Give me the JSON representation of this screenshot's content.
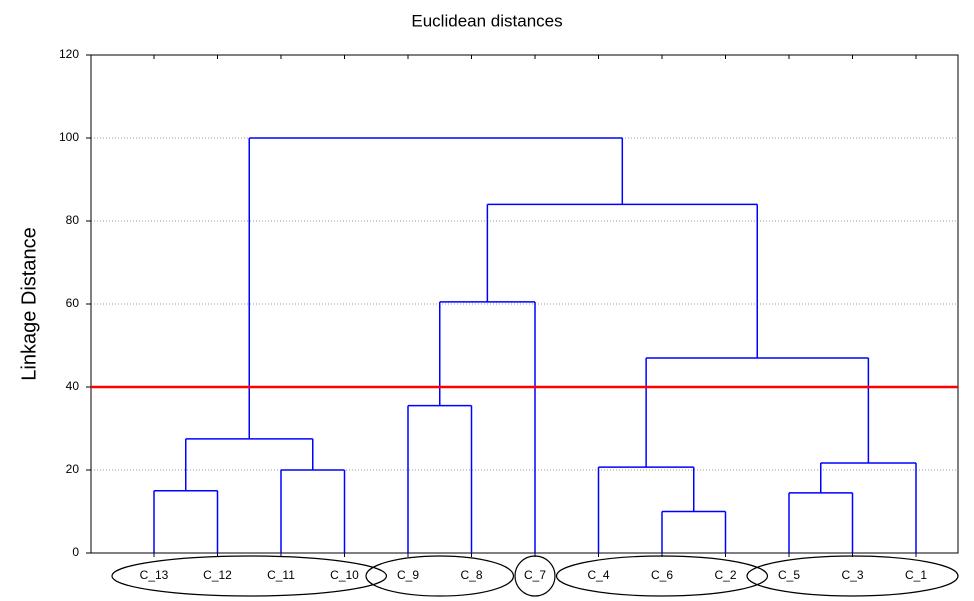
{
  "chart_data": {
    "type": "dendrogram",
    "title": "Euclidean distances",
    "y_label": "Linkage Distance",
    "ylim": [
      0,
      120
    ],
    "yticks": [
      0,
      20,
      40,
      60,
      80,
      100,
      120
    ],
    "grid": true,
    "color": "#0000ff",
    "threshold": 40,
    "threshold_color": "#ff0000",
    "tree": {
      "height": 100,
      "children": [
        {
          "height": 27.5,
          "children": [
            {
              "height": 15,
              "children": [
                {
                  "label": "C_13"
                },
                {
                  "label": "C_12"
                }
              ]
            },
            {
              "height": 20,
              "children": [
                {
                  "label": "C_11"
                },
                {
                  "label": "C_10"
                }
              ]
            }
          ]
        },
        {
          "height": 84,
          "children": [
            {
              "height": 60.5,
              "children": [
                {
                  "height": 35.5,
                  "children": [
                    {
                      "label": "C_9"
                    },
                    {
                      "label": "C_8"
                    }
                  ]
                },
                {
                  "label": "C_7"
                }
              ]
            },
            {
              "height": 47,
              "children": [
                {
                  "height": 20.7,
                  "children": [
                    {
                      "label": "C_4"
                    },
                    {
                      "height": 10,
                      "children": [
                        {
                          "label": "C_6"
                        },
                        {
                          "label": "C_2"
                        }
                      ]
                    }
                  ]
                },
                {
                  "height": 21.7,
                  "children": [
                    {
                      "height": 14.5,
                      "children": [
                        {
                          "label": "C_5"
                        },
                        {
                          "label": "C_3"
                        }
                      ]
                    },
                    {
                      "label": "C_1"
                    }
                  ]
                }
              ]
            }
          ]
        }
      ]
    }
  }
}
